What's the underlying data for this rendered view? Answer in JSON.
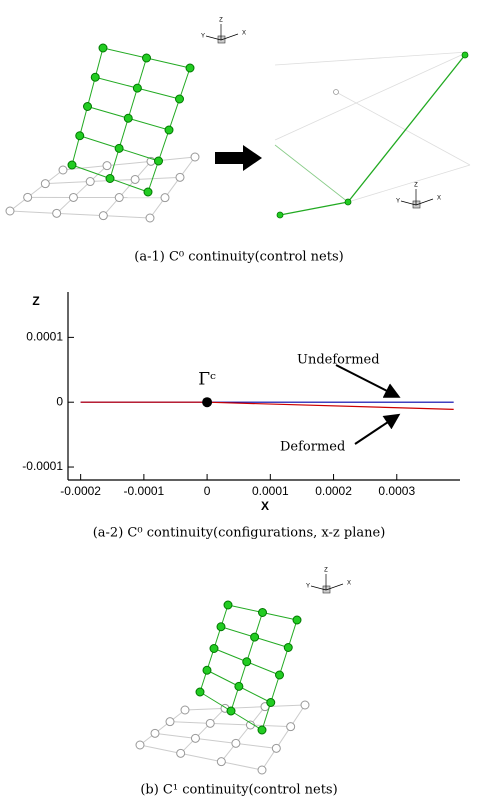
{
  "captions": [
    "(a-1)  C⁰ continuity(control nets)",
    "(a-2)  C⁰ continuity(configurations,  x-z plane)",
    "(b)  C¹ continuity(control nets)"
  ],
  "triads": [
    {
      "z": "Z",
      "y": "Y",
      "x": "X"
    },
    {
      "z": "Z",
      "y": "Y",
      "x": "X"
    },
    {
      "z": "Z",
      "y": "Y",
      "x": "X"
    }
  ],
  "chart_data": {
    "type": "line",
    "xlabel": "X",
    "ylabel": "Z",
    "x": [
      -0.0002,
      0,
      0.00039
    ],
    "series": [
      {
        "name": "Undeformed",
        "color": "#0000aa",
        "values": [
          0,
          0,
          0
        ]
      },
      {
        "name": "Deformed",
        "color": "#cc0000",
        "values": [
          0,
          0,
          -1.1e-05
        ]
      }
    ],
    "xlim": [
      -0.00022,
      0.0004
    ],
    "ylim": [
      -0.00012,
      0.00017
    ],
    "xticks": [
      -0.0002,
      -0.0001,
      0,
      0.0001,
      0.0002,
      0.0003
    ],
    "yticks": [
      -0.0001,
      0,
      0.0001
    ],
    "annotations": [
      {
        "text": "Γᶜ",
        "x": 0,
        "y": 0
      }
    ]
  }
}
